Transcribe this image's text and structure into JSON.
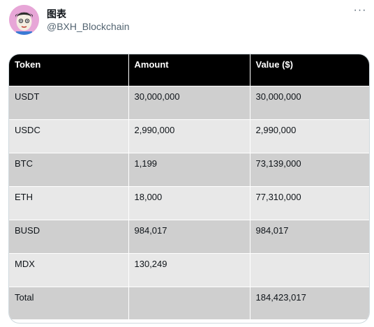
{
  "post": {
    "display_name": "图表",
    "handle": "@BXH_Blockchain",
    "more_icon": "ellipsis-icon"
  },
  "table": {
    "headers": [
      "Token",
      "Amount",
      "Value ($)"
    ],
    "rows": [
      {
        "token": "USDT",
        "amount": "30,000,000",
        "value": "30,000,000"
      },
      {
        "token": "USDC",
        "amount": "2,990,000",
        "value": "2,990,000"
      },
      {
        "token": "BTC",
        "amount": "1,199",
        "value": "73,139,000"
      },
      {
        "token": "ETH",
        "amount": "18,000",
        "value": "77,310,000"
      },
      {
        "token": "BUSD",
        "amount": "984,017",
        "value": "984,017"
      },
      {
        "token": "MDX",
        "amount": "130,249",
        "value": ""
      }
    ],
    "total": {
      "label": "Total",
      "amount": "",
      "value": "184,423,017"
    }
  },
  "colors": {
    "header_bg": "#000000",
    "row_dark": "#cfcfcf",
    "row_light": "#e8e8e8",
    "avatar_bg": "#e7a6d7"
  }
}
